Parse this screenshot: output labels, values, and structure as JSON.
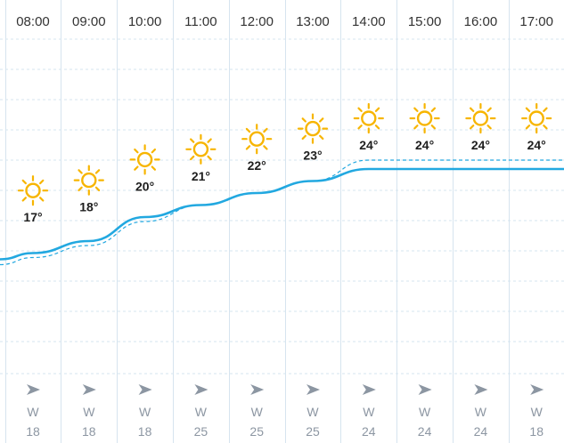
{
  "hours": [
    {
      "time": "08:00",
      "temp": 17,
      "temp_label": "17°",
      "icon": "sun-icon",
      "wind_dir": "W",
      "wind_speed": "18"
    },
    {
      "time": "09:00",
      "temp": 18,
      "temp_label": "18°",
      "icon": "sun-icon",
      "wind_dir": "W",
      "wind_speed": "18"
    },
    {
      "time": "10:00",
      "temp": 20,
      "temp_label": "20°",
      "icon": "sun-icon",
      "wind_dir": "W",
      "wind_speed": "18"
    },
    {
      "time": "11:00",
      "temp": 21,
      "temp_label": "21°",
      "icon": "sun-icon",
      "wind_dir": "W",
      "wind_speed": "25"
    },
    {
      "time": "12:00",
      "temp": 22,
      "temp_label": "22°",
      "icon": "sun-icon",
      "wind_dir": "W",
      "wind_speed": "25"
    },
    {
      "time": "13:00",
      "temp": 23,
      "temp_label": "23°",
      "icon": "sun-icon",
      "wind_dir": "W",
      "wind_speed": "25"
    },
    {
      "time": "14:00",
      "temp": 24,
      "temp_label": "24°",
      "icon": "sun-icon",
      "wind_dir": "W",
      "wind_speed": "24"
    },
    {
      "time": "15:00",
      "temp": 24,
      "temp_label": "24°",
      "icon": "sun-icon",
      "wind_dir": "W",
      "wind_speed": "24"
    },
    {
      "time": "16:00",
      "temp": 24,
      "temp_label": "24°",
      "icon": "sun-icon",
      "wind_dir": "W",
      "wind_speed": "24"
    },
    {
      "time": "17:00",
      "temp": 24,
      "temp_label": "24°",
      "icon": "sun-icon",
      "wind_dir": "W",
      "wind_speed": "18"
    }
  ],
  "wind_icon": "wind-direction-arrow-icon",
  "colors": {
    "sun": "#f7b500",
    "line": "#22a8e0",
    "grid": "#d6e4ef",
    "hour_text": "#333333",
    "temp_text": "#1e1e1e",
    "wind_text": "#8c96a2",
    "arrow": "#8c96a2"
  }
}
